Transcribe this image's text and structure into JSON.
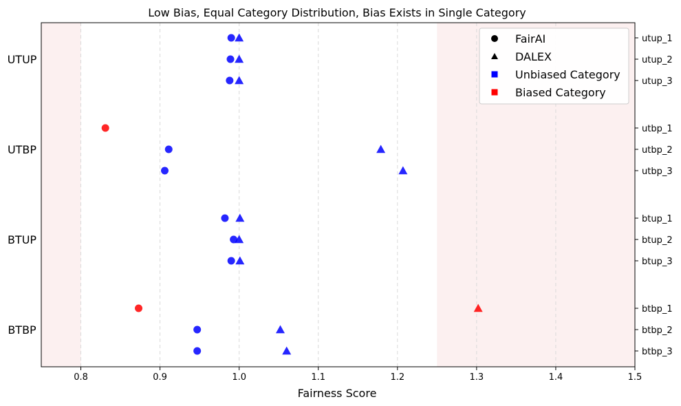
{
  "chart_data": {
    "type": "scatter",
    "title": "Low Bias, Equal Category Distribution, Bias Exists in Single Category",
    "xlabel": "Fairness Score",
    "xlim": [
      0.75,
      1.5
    ],
    "xticks": [
      "0.8",
      "0.9",
      "1.0",
      "1.1",
      "1.2",
      "1.3",
      "1.4",
      "1.5"
    ],
    "xtick_values": [
      0.8,
      0.9,
      1.0,
      1.1,
      1.2,
      1.3,
      1.4,
      1.5
    ],
    "shaded_ranges": [
      [
        0.75,
        0.8
      ],
      [
        1.25,
        1.5
      ]
    ],
    "grid": "vertical dashed",
    "legend_position": "top-right",
    "legend": [
      {
        "label": "FairAI",
        "marker": "circle",
        "color": "#000000"
      },
      {
        "label": "DALEX",
        "marker": "triangle",
        "color": "#000000"
      },
      {
        "label": "Unbiased Category",
        "marker": "square",
        "color": "#0000ff"
      },
      {
        "label": "Biased Category",
        "marker": "square",
        "color": "#ff0000"
      }
    ],
    "colors": {
      "unbiased": "#0000ff",
      "biased": "#ff0000",
      "shade": "#f9e1e1"
    },
    "groups": [
      {
        "label": "UTUP",
        "rows": [
          {
            "name": "utup_1",
            "fairai": 0.99,
            "dalex": 1.0,
            "fairai_biased": false,
            "dalex_biased": false
          },
          {
            "name": "utup_2",
            "fairai": 0.989,
            "dalex": 1.0,
            "fairai_biased": false,
            "dalex_biased": false
          },
          {
            "name": "utup_3",
            "fairai": 0.988,
            "dalex": 1.0,
            "fairai_biased": false,
            "dalex_biased": false
          }
        ]
      },
      {
        "label": "UTBP",
        "rows": [
          {
            "name": "utbp_1",
            "fairai": 0.831,
            "dalex": null,
            "fairai_biased": true,
            "dalex_biased": false
          },
          {
            "name": "utbp_2",
            "fairai": 0.911,
            "dalex": 1.179,
            "fairai_biased": false,
            "dalex_biased": false
          },
          {
            "name": "utbp_3",
            "fairai": 0.906,
            "dalex": 1.207,
            "fairai_biased": false,
            "dalex_biased": false
          }
        ]
      },
      {
        "label": "BTUP",
        "rows": [
          {
            "name": "btup_1",
            "fairai": 0.982,
            "dalex": 1.001,
            "fairai_biased": false,
            "dalex_biased": false
          },
          {
            "name": "btup_2",
            "fairai": 0.993,
            "dalex": 1.0,
            "fairai_biased": false,
            "dalex_biased": false
          },
          {
            "name": "btup_3",
            "fairai": 0.99,
            "dalex": 1.001,
            "fairai_biased": false,
            "dalex_biased": false
          }
        ]
      },
      {
        "label": "BTBP",
        "rows": [
          {
            "name": "btbp_1",
            "fairai": 0.873,
            "dalex": 1.302,
            "fairai_biased": true,
            "dalex_biased": true
          },
          {
            "name": "btbp_2",
            "fairai": 0.947,
            "dalex": 1.052,
            "fairai_biased": false,
            "dalex_biased": false
          },
          {
            "name": "btbp_3",
            "fairai": 0.947,
            "dalex": 1.06,
            "fairai_biased": false,
            "dalex_biased": false
          }
        ]
      }
    ]
  }
}
